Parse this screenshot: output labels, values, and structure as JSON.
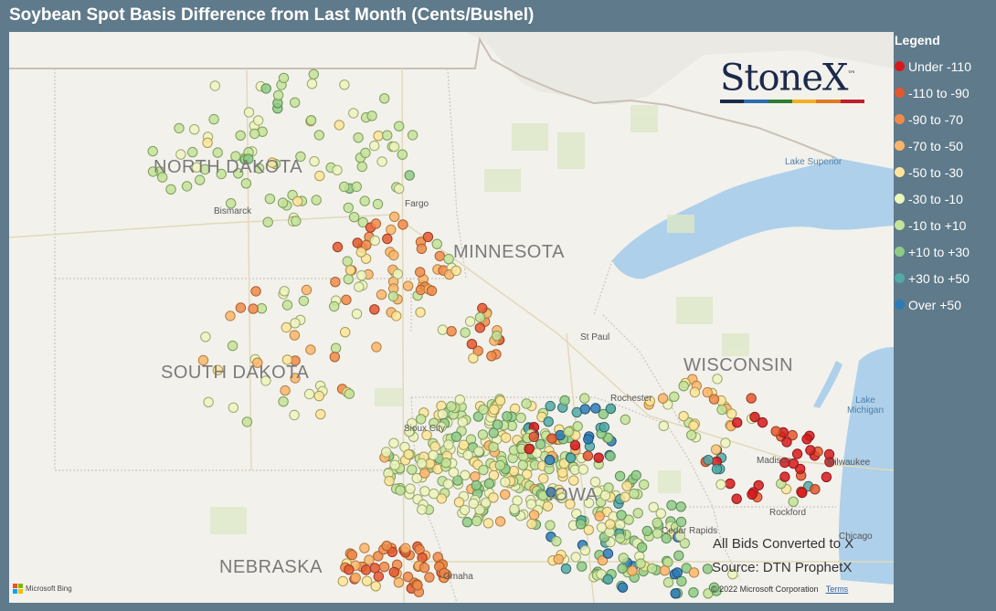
{
  "title": "Soybean Spot Basis Difference from Last Month (Cents/Bushel)",
  "map": {
    "state_labels": [
      {
        "name": "NORTH DAKOTA"
      },
      {
        "name": "SOUTH DAKOTA"
      },
      {
        "name": "MINNESOTA"
      },
      {
        "name": "WISCONSIN"
      },
      {
        "name": "IOWA"
      },
      {
        "name": "NEBRASKA"
      }
    ],
    "city_labels": [
      "Bismarck",
      "Fargo",
      "St Paul",
      "Rochester",
      "Madison",
      "Milwaukee",
      "Rockford",
      "Cedar Rapids",
      "Chicago",
      "Omaha",
      "Sioux City"
    ],
    "water_labels": [
      "Lake Superior",
      "Lake Michigan"
    ],
    "source_line1": "All Bids Converted to X",
    "source_line2": "Source: DTN ProphetX",
    "copyright": "© 2022 Microsoft Corporation",
    "terms": "Terms",
    "bing": "Microsoft Bing"
  },
  "logo": {
    "text": "StoneX",
    "tm": "™",
    "bar_colors": [
      "#1b2a4a",
      "#2a6db3",
      "#2e7d32",
      "#f2b01e",
      "#e07a1f",
      "#c0202b"
    ]
  },
  "legend": {
    "title": "Legend",
    "items": [
      {
        "label": "Under -110",
        "color": "#d7191c"
      },
      {
        "label": "-110 to -90",
        "color": "#e4572e"
      },
      {
        "label": "-90 to -70",
        "color": "#f08a4b"
      },
      {
        "label": "-70 to -50",
        "color": "#fbb56b"
      },
      {
        "label": "-50 to -30",
        "color": "#fde59a"
      },
      {
        "label": "-30 to -10",
        "color": "#eef5bd"
      },
      {
        "label": "-10 to +10",
        "color": "#c4e39a"
      },
      {
        "label": "+10 to +30",
        "color": "#8fcb86"
      },
      {
        "label": "+30 to +50",
        "color": "#52a9a6"
      },
      {
        "label": "Over +50",
        "color": "#2c7bb6"
      }
    ]
  }
}
